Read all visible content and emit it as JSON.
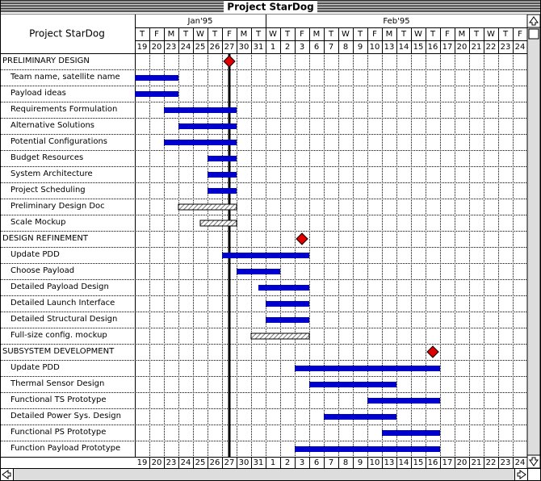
{
  "window": {
    "title": "Project StarDog"
  },
  "gantt": {
    "project": "Project StarDog",
    "months": [
      {
        "label": "Jan'95",
        "columns": [
          0,
          8
        ]
      },
      {
        "label": "Feb'95",
        "columns": [
          9,
          26
        ]
      }
    ],
    "weekdays": [
      "T",
      "F",
      "M",
      "T",
      "W",
      "T",
      "F",
      "M",
      "T",
      "W",
      "T",
      "F",
      "M",
      "T",
      "W",
      "T",
      "F",
      "M",
      "T",
      "W",
      "T",
      "F",
      "M",
      "T",
      "W",
      "T",
      "F"
    ],
    "days": [
      19,
      20,
      23,
      24,
      25,
      26,
      27,
      30,
      31,
      1,
      2,
      3,
      6,
      7,
      8,
      9,
      10,
      13,
      14,
      15,
      16,
      17,
      20,
      21,
      22,
      23,
      24
    ],
    "today": 6,
    "rows": [
      {
        "label": "PRELIMINARY DESIGN",
        "type": "group",
        "milestone": 6
      },
      {
        "label": "Team name, satellite name",
        "start": 0,
        "end": 2
      },
      {
        "label": "Payload ideas",
        "start": 0,
        "end": 2
      },
      {
        "label": "Requirements Formulation",
        "start": 2,
        "end": 6
      },
      {
        "label": "Alternative Solutions",
        "start": 3,
        "end": 6
      },
      {
        "label": "Potential Configurations",
        "start": 2,
        "end": 6
      },
      {
        "label": "Budget Resources",
        "start": 5,
        "end": 6
      },
      {
        "label": "System Architecture",
        "start": 5,
        "end": 6
      },
      {
        "label": "Project Scheduling",
        "start": 5,
        "end": 6
      },
      {
        "label": "Preliminary Design Doc",
        "start": 3,
        "end": 6,
        "style": "hatched"
      },
      {
        "label": "Scale Mockup",
        "start": 4.5,
        "end": 6,
        "style": "hatched"
      },
      {
        "label": "DESIGN REFINEMENT",
        "type": "group",
        "milestone": 11
      },
      {
        "label": "Update PDD",
        "start": 6,
        "end": 11
      },
      {
        "label": "Choose Payload",
        "start": 7,
        "end": 9
      },
      {
        "label": "Detailed Payload Design",
        "start": 8.5,
        "end": 11
      },
      {
        "label": "Detailed Launch Interface",
        "start": 9,
        "end": 11
      },
      {
        "label": "Detailed Structural Design",
        "start": 9,
        "end": 11
      },
      {
        "label": "Full-size config. mockup",
        "start": 8,
        "end": 11,
        "style": "hatched"
      },
      {
        "label": "SUBSYSTEM DEVELOPMENT",
        "type": "group",
        "milestone": 20
      },
      {
        "label": "Update PDD",
        "start": 11,
        "end": 20
      },
      {
        "label": "Thermal Sensor Design",
        "start": 12,
        "end": 17
      },
      {
        "label": "Functional TS Prototype",
        "start": 16,
        "end": 20
      },
      {
        "label": "Detailed Power Sys. Design",
        "start": 13,
        "end": 17
      },
      {
        "label": "Functional PS Prototype",
        "start": 17,
        "end": 20
      },
      {
        "label": "Function Payload Prototype",
        "start": 11,
        "end": 20
      }
    ]
  }
}
